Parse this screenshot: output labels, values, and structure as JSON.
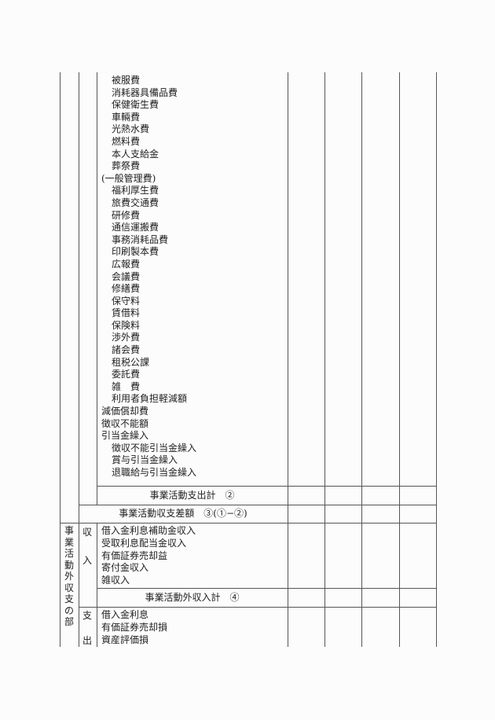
{
  "operating_expenses": {
    "items": [
      {
        "label": "被服費",
        "level": 1
      },
      {
        "label": "消耗器具備品費",
        "level": 1
      },
      {
        "label": "保健衛生費",
        "level": 1
      },
      {
        "label": "車輛費",
        "level": 1
      },
      {
        "label": "光熱水費",
        "level": 1
      },
      {
        "label": "燃料費",
        "level": 1
      },
      {
        "label": "本人支給金",
        "level": 1
      },
      {
        "label": "葬祭費",
        "level": 1
      },
      {
        "label": "(一般管理費)",
        "level": 0
      },
      {
        "label": "福利厚生費",
        "level": 1
      },
      {
        "label": "旅費交通費",
        "level": 1
      },
      {
        "label": "研修費",
        "level": 1
      },
      {
        "label": "通信運搬費",
        "level": 1
      },
      {
        "label": "事務消耗品費",
        "level": 1
      },
      {
        "label": "印刷製本費",
        "level": 1
      },
      {
        "label": "広報費",
        "level": 1
      },
      {
        "label": "会議費",
        "level": 1
      },
      {
        "label": "修繕費",
        "level": 1
      },
      {
        "label": "保守料",
        "level": 1
      },
      {
        "label": "賃借料",
        "level": 1
      },
      {
        "label": "保険料",
        "level": 1
      },
      {
        "label": "渉外費",
        "level": 1
      },
      {
        "label": "諸会費",
        "level": 1
      },
      {
        "label": "租税公課",
        "level": 1
      },
      {
        "label": "委託費",
        "level": 1
      },
      {
        "label": "雑　費",
        "level": 1
      },
      {
        "label": "利用者負担軽減額",
        "level": 1
      },
      {
        "label": "減価償却費",
        "level": 0
      },
      {
        "label": "徴収不能額",
        "level": 0
      },
      {
        "label": "引当金繰入",
        "level": 0
      },
      {
        "label": "徴収不能引当金繰入",
        "level": 1
      },
      {
        "label": "賞与引当金繰入",
        "level": 1
      },
      {
        "label": "退職給与引当金繰入",
        "level": 1
      }
    ],
    "total_label": "事業活動支出計　②"
  },
  "balance_label": "事業活動収支差額　③(①−②)",
  "non_operating": {
    "section_label": "事業活動外収支の部",
    "income": {
      "label_top": "収",
      "label_bottom": "入",
      "items": [
        "借入金利息補助金収入",
        "受取利息配当金収入",
        "有価証券売却益",
        "寄付金収入",
        "雑収入"
      ],
      "total_label": "事業活動外収入計　④"
    },
    "expense": {
      "label_top": "支",
      "label_bottom": "出",
      "items": [
        "借入金利息",
        "有価証券売却損",
        "資産評価損"
      ]
    }
  }
}
